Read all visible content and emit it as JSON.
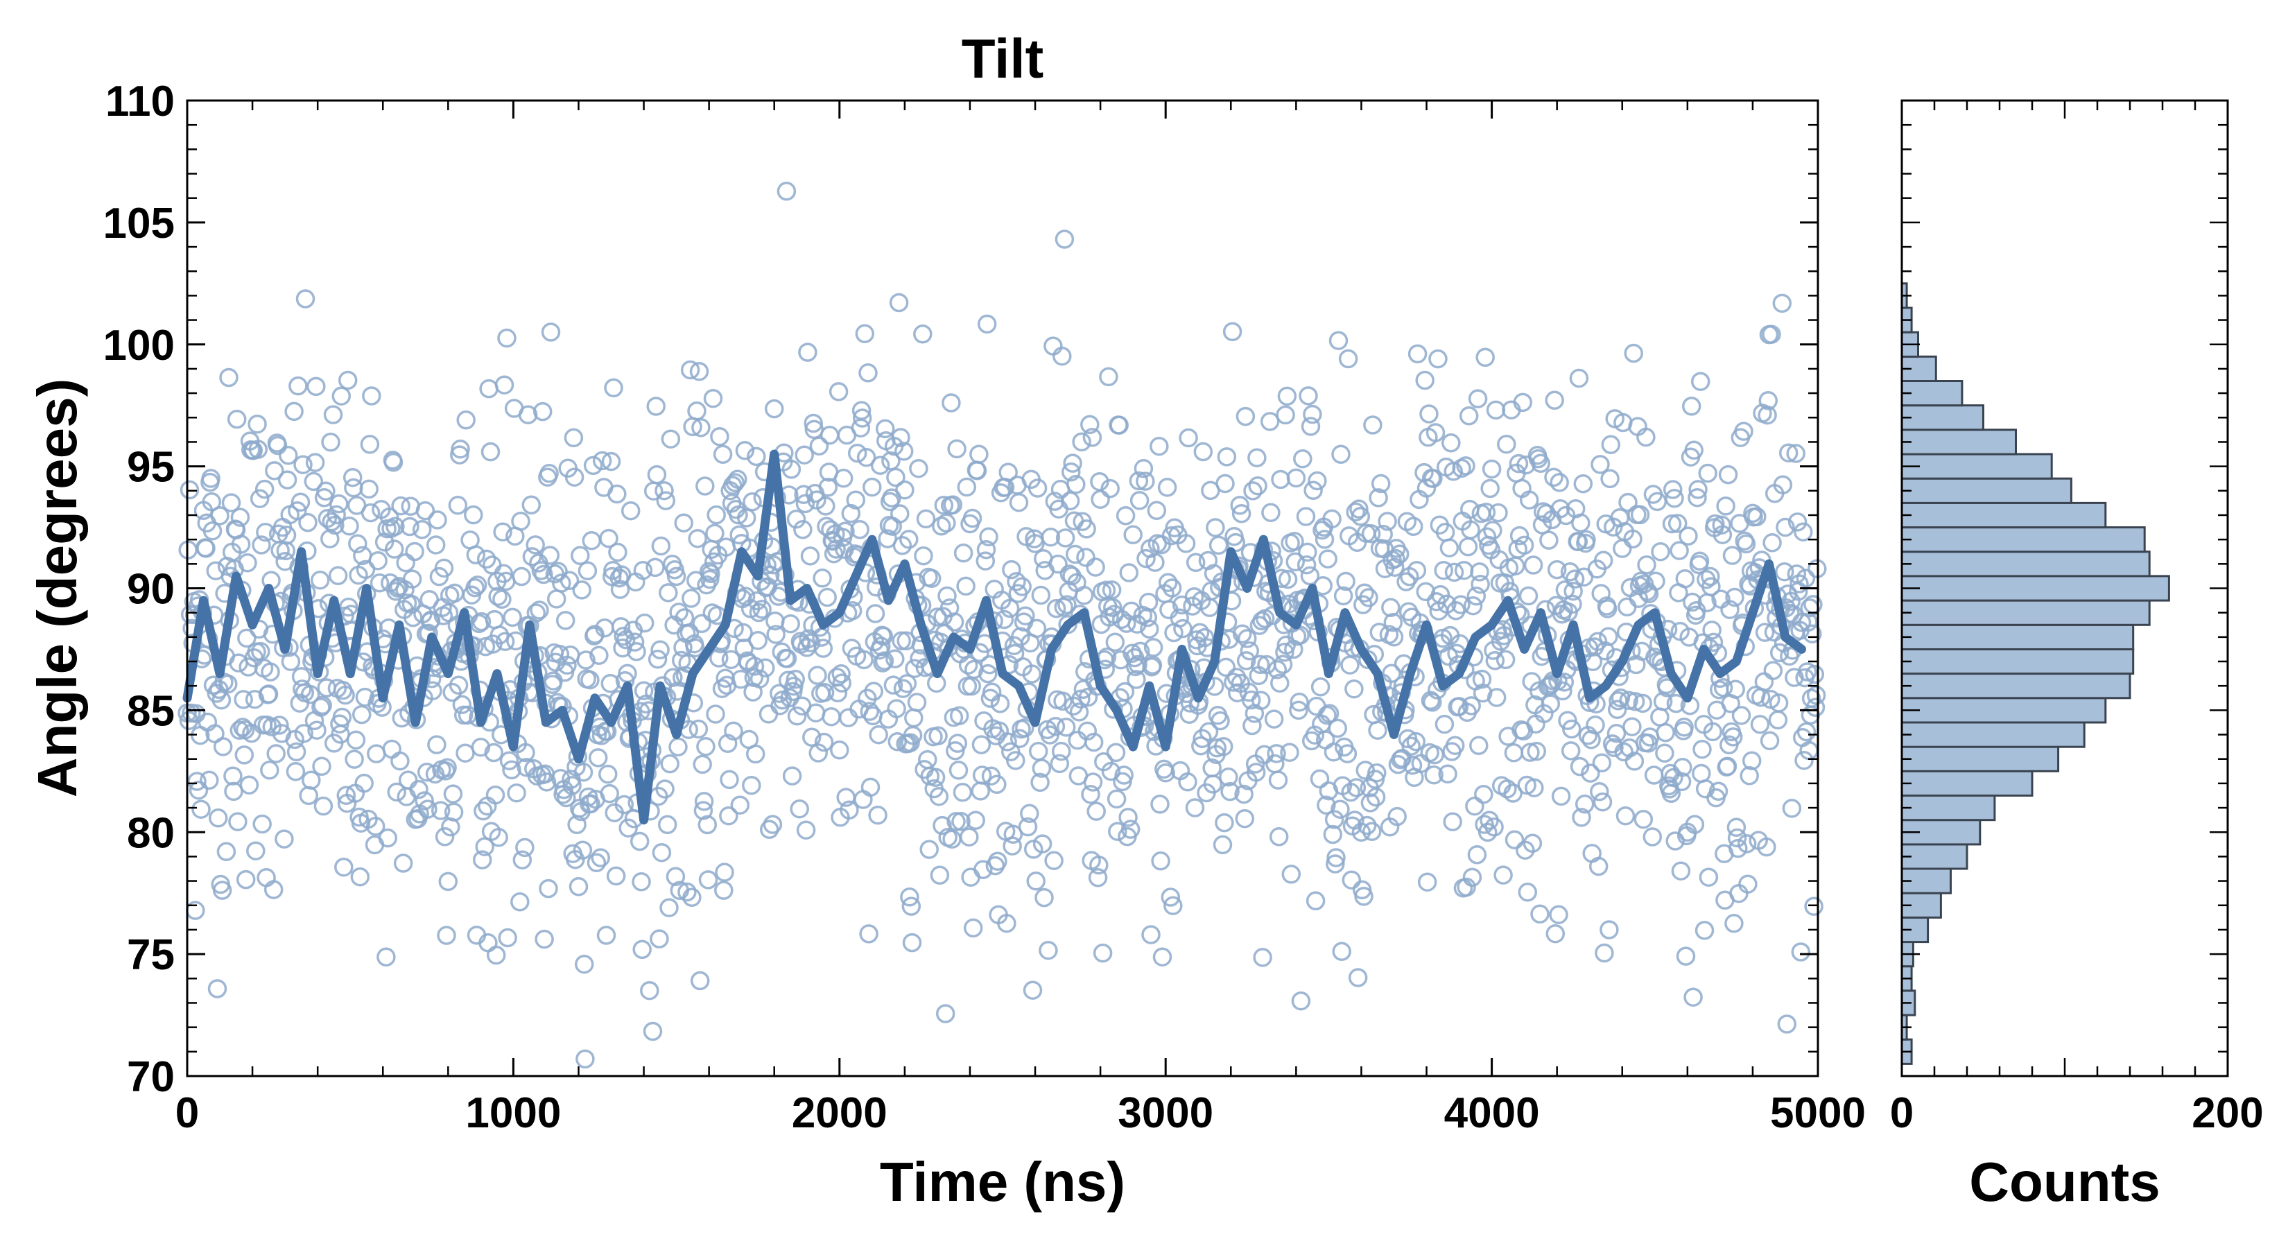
{
  "colors": {
    "line": "#4573a7",
    "marker": "#8eaacb",
    "hist_fill": "#a8bfd9",
    "hist_edge": "#3a4450",
    "axes": "#000000"
  },
  "chart_data": [
    {
      "type": "scatter",
      "title": "Tilt",
      "xlabel": "Time (ns)",
      "ylabel": "Angle (degrees)",
      "xlim": [
        0,
        5000
      ],
      "ylim": [
        70,
        110
      ],
      "xticks": [
        0,
        1000,
        2000,
        3000,
        4000,
        5000
      ],
      "yticks": [
        70,
        75,
        80,
        85,
        90,
        95,
        100,
        105,
        110
      ],
      "grid": false,
      "legend": "none",
      "series": [
        {
          "kind": "scatter",
          "marker": "open-circle",
          "color": "#8eaacb",
          "n_points": 2000,
          "x_start": 0,
          "x_step": 2.5,
          "y_mean": 87.5,
          "y_std": 5.2
        },
        {
          "kind": "line",
          "color": "#4573a7",
          "x_start": 0,
          "x_step": 50,
          "y": [
            85.5,
            89.5,
            86.5,
            90.5,
            88.5,
            90,
            87.5,
            91.5,
            86.5,
            89.5,
            86.5,
            90,
            85.5,
            88.5,
            84.5,
            88,
            86.5,
            89,
            84.5,
            86.5,
            83.5,
            88.5,
            84.5,
            85,
            83,
            85.5,
            84.5,
            86,
            80.5,
            86,
            84,
            86.5,
            87.5,
            88.5,
            91.5,
            90.5,
            95.5,
            89.5,
            90,
            88.5,
            89,
            90.5,
            92,
            89.5,
            91,
            88.5,
            86.5,
            88,
            87.5,
            89.5,
            86.5,
            86,
            84.5,
            87.5,
            88.5,
            89,
            86,
            85,
            83.5,
            86,
            83.5,
            87.5,
            85.5,
            87,
            91.5,
            90,
            92,
            89,
            88.5,
            90,
            86.5,
            89,
            87.5,
            86.5,
            84,
            86.5,
            88.5,
            86,
            86.5,
            88,
            88.5,
            89.5,
            87.5,
            89,
            86.5,
            88.5,
            85.5,
            86,
            87,
            88.5,
            89,
            86.5,
            85.5,
            87.5,
            86.5,
            87,
            89,
            91,
            88,
            87.5
          ]
        }
      ]
    },
    {
      "type": "bar",
      "orientation": "horizontal",
      "xlabel": "Counts",
      "xlim": [
        0,
        200
      ],
      "xticks": [
        0,
        200
      ],
      "ylim": [
        70,
        110
      ],
      "bin_width": 1,
      "bins": [
        71,
        72,
        73,
        74,
        75,
        76,
        77,
        78,
        79,
        80,
        81,
        82,
        83,
        84,
        85,
        86,
        87,
        88,
        89,
        90,
        91,
        92,
        93,
        94,
        95,
        96,
        97,
        98,
        99,
        100,
        101,
        102
      ],
      "values": [
        6,
        3,
        8,
        6,
        7,
        16,
        24,
        30,
        40,
        48,
        57,
        80,
        96,
        112,
        125,
        140,
        142,
        142,
        152,
        164,
        152,
        149,
        125,
        104,
        92,
        70,
        50,
        37,
        21,
        10,
        6,
        3
      ]
    }
  ]
}
